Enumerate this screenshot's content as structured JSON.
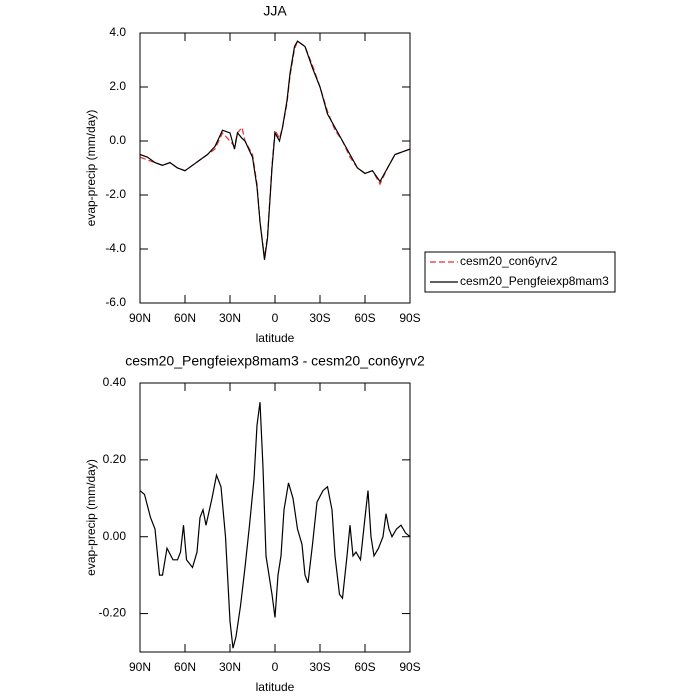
{
  "chart_data": [
    {
      "type": "line",
      "title": "JJA",
      "xlabel": "latitude",
      "ylabel": "evap-precip (mm/day)",
      "x": [
        90,
        85,
        80,
        75,
        70,
        65,
        60,
        55,
        50,
        45,
        40,
        35,
        30,
        27,
        25,
        22,
        20,
        15,
        12,
        10,
        7,
        5,
        2,
        0,
        -3,
        -5,
        -8,
        -10,
        -13,
        -15,
        -20,
        -25,
        -30,
        -35,
        -40,
        -45,
        -50,
        -55,
        -60,
        -65,
        -70,
        -75,
        -80,
        -85,
        -90
      ],
      "series": [
        {
          "name": "cesm20_con6yrv2",
          "color": "#e03030",
          "dashed": true,
          "values": [
            -0.6,
            -0.7,
            -0.8,
            -0.9,
            -0.8,
            -1.0,
            -1.1,
            -0.9,
            -0.7,
            -0.5,
            -0.3,
            0.3,
            0.0,
            -0.2,
            0.3,
            0.5,
            0.0,
            -0.5,
            -1.6,
            -3.0,
            -4.3,
            -3.5,
            -0.9,
            0.4,
            0.1,
            0.5,
            1.4,
            2.4,
            3.4,
            3.7,
            3.5,
            2.8,
            2.0,
            1.1,
            0.4,
            0.0,
            -0.6,
            -1.0,
            -1.2,
            -1.1,
            -1.6,
            -1.0,
            -0.5,
            -0.4,
            -0.3
          ]
        },
        {
          "name": "cesm20_Pengfeiexp8mam3",
          "color": "#000000",
          "dashed": false,
          "values": [
            -0.5,
            -0.6,
            -0.8,
            -0.9,
            -0.8,
            -1.0,
            -1.1,
            -0.9,
            -0.7,
            -0.5,
            -0.2,
            0.4,
            0.3,
            -0.3,
            0.3,
            0.1,
            0.0,
            -0.6,
            -1.7,
            -3.0,
            -4.4,
            -3.6,
            -1.0,
            0.3,
            0.0,
            0.5,
            1.5,
            2.5,
            3.5,
            3.7,
            3.5,
            2.7,
            2.0,
            1.0,
            0.5,
            0.0,
            -0.5,
            -1.0,
            -1.2,
            -1.1,
            -1.5,
            -1.0,
            -0.5,
            -0.4,
            -0.3
          ]
        }
      ],
      "xlim": [
        90,
        -90
      ],
      "xticks": [
        {
          "value": 90,
          "label": "90N"
        },
        {
          "value": 60,
          "label": "60N"
        },
        {
          "value": 30,
          "label": "30N"
        },
        0,
        {
          "value": -30,
          "label": "30S"
        },
        {
          "value": -60,
          "label": "60S"
        },
        {
          "value": -90,
          "label": "90S"
        }
      ],
      "ylim": [
        -6,
        4
      ],
      "yticks": [
        {
          "value": 4,
          "label": "4.0"
        },
        {
          "value": 2,
          "label": "2.0"
        },
        {
          "value": 0,
          "label": "0.0"
        },
        {
          "value": -2,
          "label": "-2.0"
        },
        {
          "value": -4,
          "label": "-4.0"
        },
        {
          "value": -6,
          "label": "-6.0"
        }
      ],
      "legend": "right"
    },
    {
      "type": "line",
      "title": "cesm20_Pengfeiexp8mam3 - cesm20_con6yrv2",
      "xlabel": "latitude",
      "ylabel": "evap-precip (mm/day)",
      "color": "#000000",
      "x": [
        90,
        87,
        83,
        80,
        77,
        75,
        72,
        68,
        65,
        63,
        61,
        59,
        55,
        52,
        50,
        48,
        46,
        42,
        39,
        36,
        33,
        30,
        28,
        26,
        23,
        20,
        17,
        14,
        12,
        10,
        8,
        6,
        4,
        2,
        0,
        -2,
        -4,
        -6,
        -9,
        -12,
        -15,
        -18,
        -20,
        -22,
        -25,
        -28,
        -32,
        -35,
        -38,
        -40,
        -43,
        -45,
        -48,
        -50,
        -52,
        -54,
        -57,
        -60,
        -62,
        -64,
        -66,
        -69,
        -72,
        -74,
        -76,
        -78,
        -81,
        -84,
        -87,
        -90
      ],
      "values": [
        0.12,
        0.11,
        0.05,
        0.02,
        -0.1,
        -0.1,
        -0.03,
        -0.06,
        -0.06,
        -0.04,
        0.03,
        -0.06,
        -0.08,
        -0.04,
        0.05,
        0.07,
        0.03,
        0.1,
        0.16,
        0.13,
        0.0,
        -0.22,
        -0.29,
        -0.26,
        -0.18,
        -0.08,
        0.03,
        0.15,
        0.29,
        0.35,
        0.18,
        -0.05,
        -0.1,
        -0.15,
        -0.21,
        -0.1,
        -0.05,
        0.07,
        0.14,
        0.1,
        0.02,
        -0.02,
        -0.1,
        -0.12,
        -0.02,
        0.09,
        0.12,
        0.13,
        0.07,
        -0.05,
        -0.15,
        -0.16,
        -0.05,
        0.03,
        -0.05,
        -0.04,
        -0.06,
        0.05,
        0.12,
        0.0,
        -0.05,
        -0.03,
        0.0,
        0.06,
        0.02,
        0.0,
        0.02,
        0.03,
        0.01,
        0.0
      ],
      "xlim": [
        90,
        -90
      ],
      "xticks": [
        {
          "value": 90,
          "label": "90N"
        },
        {
          "value": 60,
          "label": "60N"
        },
        {
          "value": 30,
          "label": "30N"
        },
        0,
        {
          "value": -30,
          "label": "30S"
        },
        {
          "value": -60,
          "label": "60S"
        },
        {
          "value": -90,
          "label": "90S"
        }
      ],
      "ylim": [
        -0.3,
        0.4
      ],
      "yticks": [
        {
          "value": 0.4,
          "label": "0.40"
        },
        {
          "value": 0.2,
          "label": "0.20"
        },
        {
          "value": 0,
          "label": "0.00"
        },
        {
          "value": -0.2,
          "label": "-0.20"
        }
      ]
    }
  ]
}
